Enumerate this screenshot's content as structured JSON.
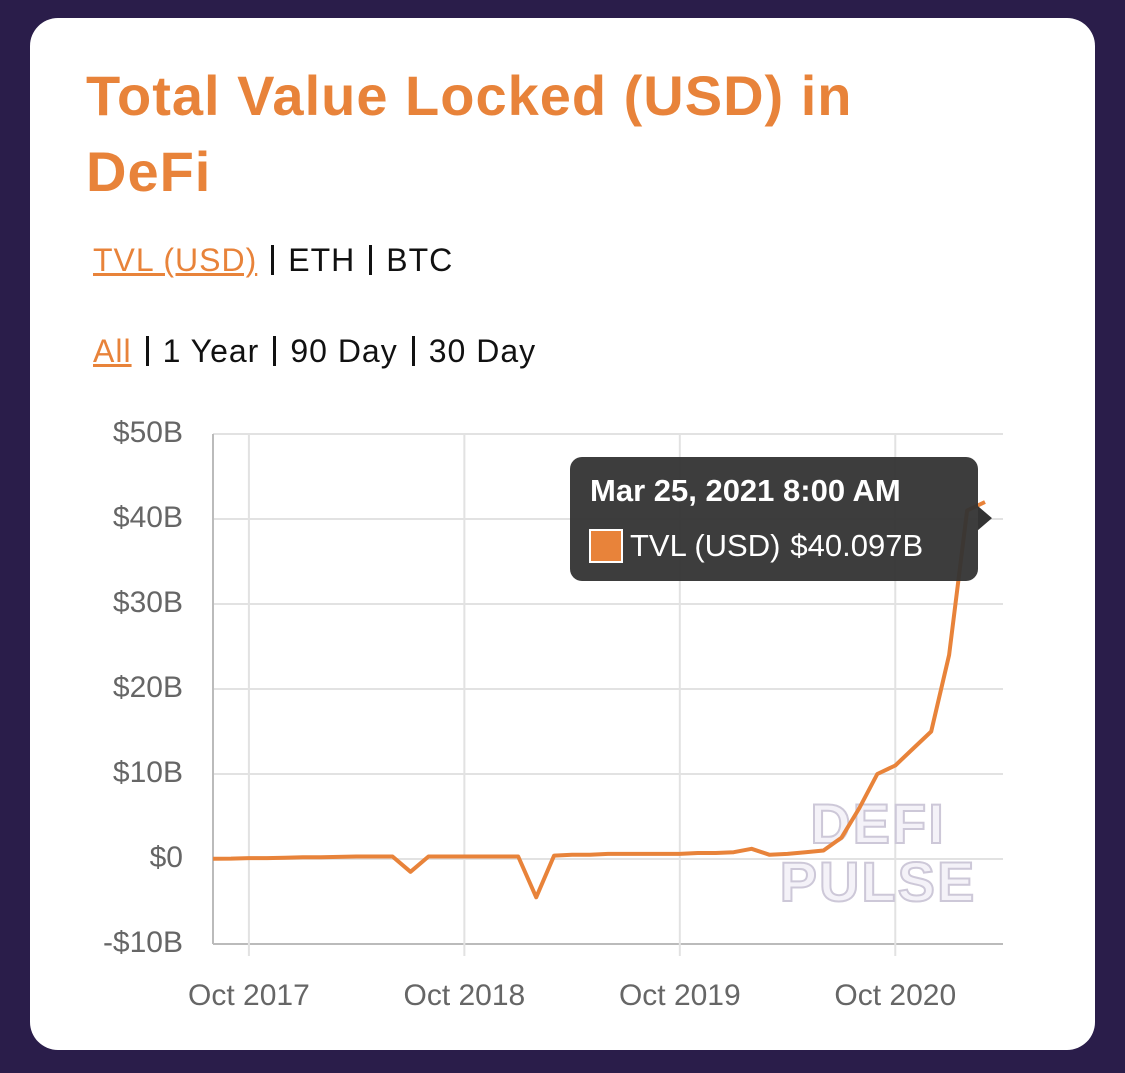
{
  "title": "Total Value Locked (USD) in DeFi",
  "units": [
    "TVL (USD)",
    "ETH",
    "BTC"
  ],
  "ranges": [
    "All",
    "1 Year",
    "90 Day",
    "30 Day"
  ],
  "chart_data": {
    "type": "line",
    "x": [
      "2017-08",
      "2017-09",
      "2017-10",
      "2017-11",
      "2017-12",
      "2018-01",
      "2018-02",
      "2018-03",
      "2018-04",
      "2018-05",
      "2018-06",
      "2018-07",
      "2018-08",
      "2018-09",
      "2018-10",
      "2018-11",
      "2018-12",
      "2019-01",
      "2019-02",
      "2019-03",
      "2019-04",
      "2019-05",
      "2019-06",
      "2019-07",
      "2019-08",
      "2019-09",
      "2019-10",
      "2019-11",
      "2019-12",
      "2020-01",
      "2020-02",
      "2020-03",
      "2020-04",
      "2020-05",
      "2020-06",
      "2020-07",
      "2020-08",
      "2020-09",
      "2020-10",
      "2020-11",
      "2020-12",
      "2021-01",
      "2021-02",
      "2021-03"
    ],
    "series": [
      {
        "name": "TVL (USD)",
        "color": "#e8833a",
        "values": [
          0.03,
          0.05,
          0.1,
          0.1,
          0.15,
          0.2,
          0.2,
          0.25,
          0.3,
          0.3,
          0.3,
          -1.5,
          0.3,
          0.3,
          0.3,
          0.3,
          0.3,
          0.3,
          -4.5,
          0.4,
          0.5,
          0.5,
          0.6,
          0.6,
          0.6,
          0.6,
          0.6,
          0.7,
          0.7,
          0.8,
          1.2,
          0.5,
          0.6,
          0.8,
          1.0,
          2.5,
          6,
          10,
          11,
          13,
          15,
          24,
          41,
          42
        ]
      }
    ],
    "xlim": [
      "2017-08",
      "2021-04"
    ],
    "xticks": [
      {
        "value": "2017-10",
        "label": "Oct 2017"
      },
      {
        "value": "2018-10",
        "label": "Oct 2018"
      },
      {
        "value": "2019-10",
        "label": "Oct 2019"
      },
      {
        "value": "2020-10",
        "label": "Oct 2020"
      }
    ],
    "ylim": [
      -10,
      50
    ],
    "yticks": [
      {
        "value": -10,
        "label": "-$10B"
      },
      {
        "value": 0,
        "label": "$0"
      },
      {
        "value": 10,
        "label": "$10B"
      },
      {
        "value": 20,
        "label": "$20B"
      },
      {
        "value": 30,
        "label": "$30B"
      },
      {
        "value": 40,
        "label": "$40B"
      },
      {
        "value": 50,
        "label": "$50B"
      }
    ],
    "grid": true,
    "tooltip": {
      "date": "Mar 25, 2021 8:00 AM",
      "value": 40.097,
      "value_label": "$40.097B"
    },
    "watermark": [
      "DEFI",
      "PULSE"
    ]
  }
}
